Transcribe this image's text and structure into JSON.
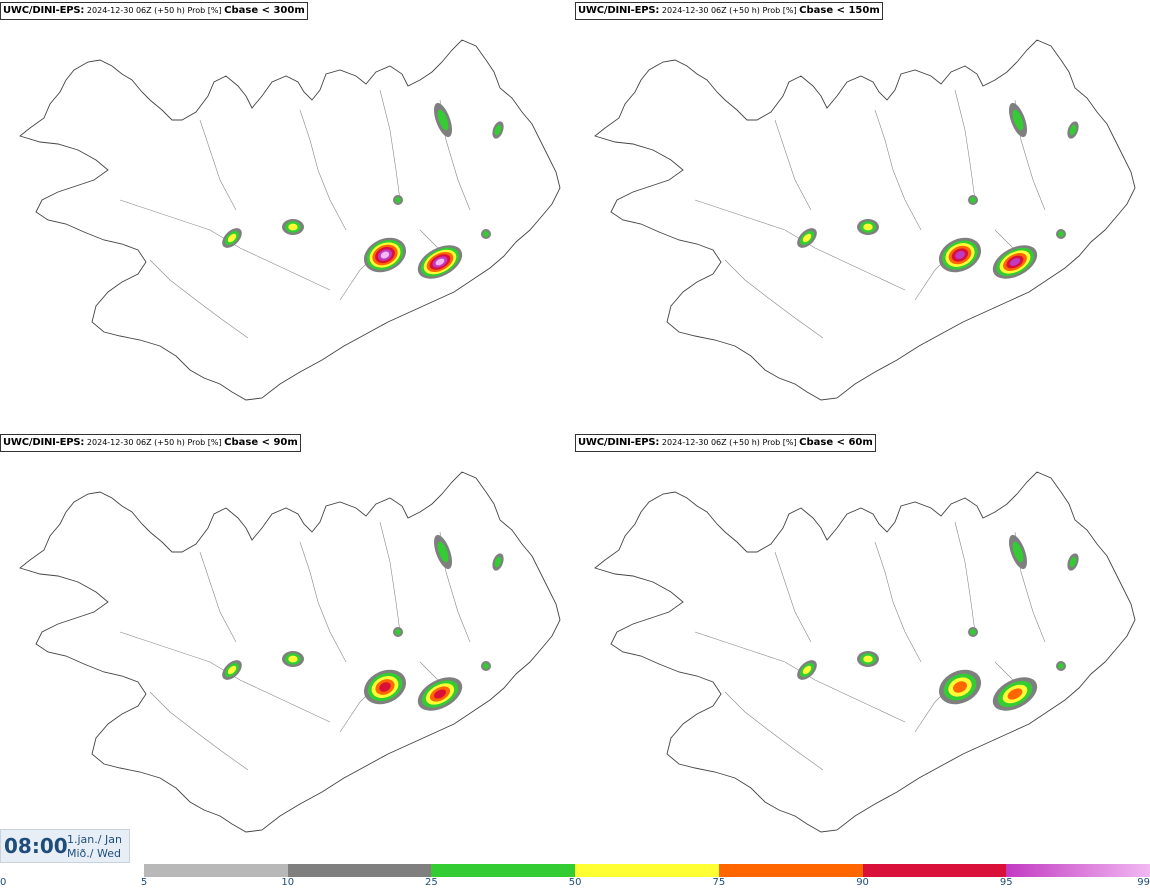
{
  "panels": [
    {
      "model": "UWC/DINI-EPS",
      "colon": ":",
      "info": " 2024-12-30 06Z (+50 h) Prob [%] ",
      "param": "Cbase < 300m",
      "level": 4
    },
    {
      "model": "UWC/DINI-EPS",
      "colon": ":",
      "info": " 2024-12-30 06Z (+50 h) Prob [%] ",
      "param": "Cbase < 150m",
      "level": 3
    },
    {
      "model": "UWC/DINI-EPS",
      "colon": ":",
      "info": " 2024-12-30 06Z (+50 h) Prob [%] ",
      "param": "Cbase < 90m",
      "level": 2
    },
    {
      "model": "UWC/DINI-EPS",
      "colon": ":",
      "info": " 2024-12-30 06Z (+50 h) Prob [%] ",
      "param": "Cbase < 60m",
      "level": 1
    }
  ],
  "valid_time": {
    "time": "08:00",
    "date_line1": "1.jan./ Jan",
    "date_line2": "Mið./ Wed"
  },
  "colorbar": {
    "ticks": [
      "0",
      "5",
      "10",
      "25",
      "50",
      "75",
      "90",
      "95",
      "99"
    ],
    "colors": [
      "#ffffff",
      "#b8b8b8",
      "#7f7f7f",
      "#33cc33",
      "#ffff33",
      "#ff6600",
      "#d9103a",
      "#c23ac2",
      "#f2b8f2"
    ]
  }
}
